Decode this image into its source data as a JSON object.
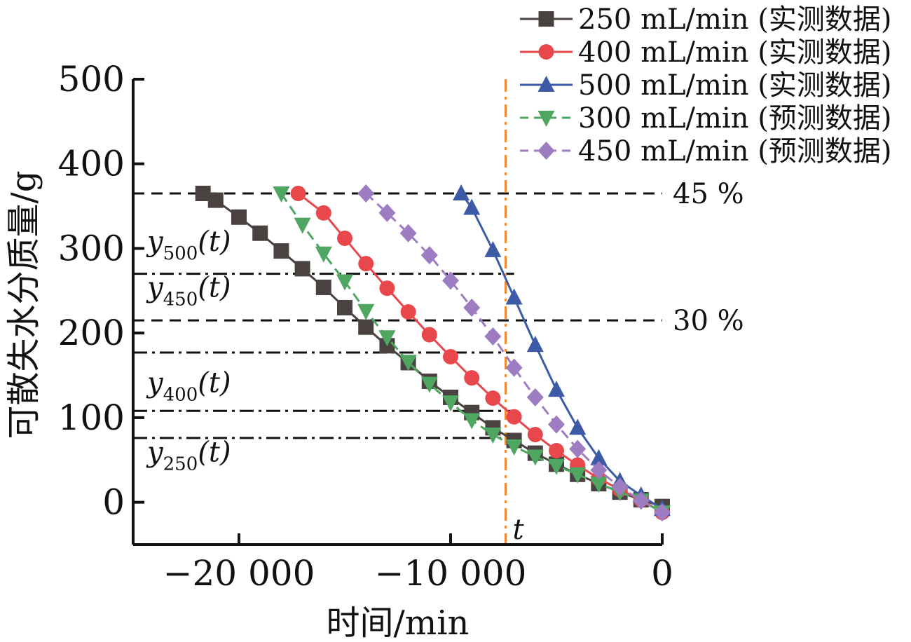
{
  "chart_data": {
    "type": "line",
    "xlabel": "时间/min",
    "ylabel": "可散失水分质量/g",
    "xlim": [
      -25000,
      0
    ],
    "ylim": [
      -50,
      500
    ],
    "xticks": [
      -20000,
      -10000,
      0
    ],
    "xtick_labels": [
      "−20 000",
      "−10 000",
      "0"
    ],
    "yticks": [
      0,
      100,
      200,
      300,
      400,
      500
    ],
    "ytick_labels": [
      "0",
      "100",
      "200",
      "300",
      "400",
      "500"
    ],
    "grid": false,
    "legend_position": "top-right",
    "series": [
      {
        "name": "250 mL/min (实测数据)",
        "color": "#4a4240",
        "marker": "square",
        "dashed": false,
        "x": [
          -21700,
          -21100,
          -20000,
          -19000,
          -18000,
          -17000,
          -16000,
          -15000,
          -14000,
          -13000,
          -12000,
          -11000,
          -10000,
          -9000,
          -8000,
          -7000,
          -6000,
          -5000,
          -4000,
          -3000,
          -2000,
          -1000,
          0
        ],
        "y": [
          365,
          357,
          337,
          318,
          297,
          276,
          254,
          230,
          207,
          185,
          165,
          143,
          124,
          106,
          88,
          73,
          58,
          45,
          33,
          22,
          12,
          3,
          -5
        ]
      },
      {
        "name": "400 mL/min (实测数据)",
        "color": "#e8474c",
        "marker": "circle",
        "dashed": false,
        "x": [
          -17200,
          -16000,
          -15000,
          -14000,
          -13000,
          -12000,
          -11000,
          -10000,
          -9000,
          -8000,
          -7000,
          -6000,
          -5000,
          -4000,
          -3000,
          -2000,
          -1000,
          0
        ],
        "y": [
          365,
          342,
          312,
          282,
          253,
          225,
          198,
          172,
          147,
          123,
          101,
          80,
          61,
          44,
          28,
          15,
          3,
          -12
        ]
      },
      {
        "name": "500 mL/min (实测数据)",
        "color": "#3c5aa6",
        "marker": "triangle-up",
        "dashed": false,
        "x": [
          -9500,
          -9000,
          -8000,
          -7000,
          -6000,
          -5000,
          -4000,
          -3000,
          -2000,
          -1000,
          0
        ],
        "y": [
          365,
          348,
          298,
          242,
          186,
          133,
          88,
          52,
          25,
          8,
          -8
        ]
      },
      {
        "name": "300 mL/min (预测数据)",
        "color": "#4fa661",
        "marker": "triangle-down",
        "dashed": true,
        "x": [
          -18000,
          -17000,
          -16000,
          -15000,
          -14000,
          -13000,
          -12000,
          -11000,
          -10000,
          -9000,
          -8000,
          -7000,
          -6000,
          -5000,
          -4000,
          -3000,
          -2000,
          -1000,
          0
        ],
        "y": [
          365,
          328,
          294,
          261,
          226,
          195,
          166,
          140,
          118,
          97,
          80,
          66,
          54,
          43,
          33,
          22,
          12,
          2,
          -12
        ]
      },
      {
        "name": "450 mL/min (预测数据)",
        "color": "#9e7cc1",
        "marker": "diamond",
        "dashed": true,
        "x": [
          -14000,
          -13000,
          -12000,
          -11000,
          -10000,
          -9000,
          -8000,
          -7000,
          -6000,
          -5000,
          -4000,
          -3000,
          -2000,
          -1000,
          0
        ],
        "y": [
          365,
          342,
          318,
          292,
          262,
          230,
          196,
          159,
          124,
          92,
          63,
          38,
          18,
          2,
          -12
        ]
      }
    ],
    "reference_lines": {
      "horizontal_dashed": [
        {
          "y": 365,
          "label": "45 %"
        },
        {
          "y": 215,
          "label": "30 %"
        }
      ],
      "horizontal_dashdot": [
        {
          "y": 270,
          "x_end": -7000
        },
        {
          "y": 177,
          "x_end": -7000
        },
        {
          "y": 108,
          "x_end": -7000
        },
        {
          "y": 76,
          "x_end": -7000
        }
      ],
      "vertical_dashdot": {
        "x": -7400,
        "label": "t",
        "color": "#f08a2e"
      }
    },
    "curve_labels": [
      {
        "base": "y",
        "sub": "500",
        "suffix": "(t)",
        "y": 297
      },
      {
        "base": "y",
        "sub": "450",
        "suffix": "(t)",
        "y": 243
      },
      {
        "base": "y",
        "sub": "400",
        "suffix": "(t)",
        "y": 130
      },
      {
        "base": "y",
        "sub": "250",
        "suffix": "(t)",
        "y": 48
      }
    ]
  }
}
